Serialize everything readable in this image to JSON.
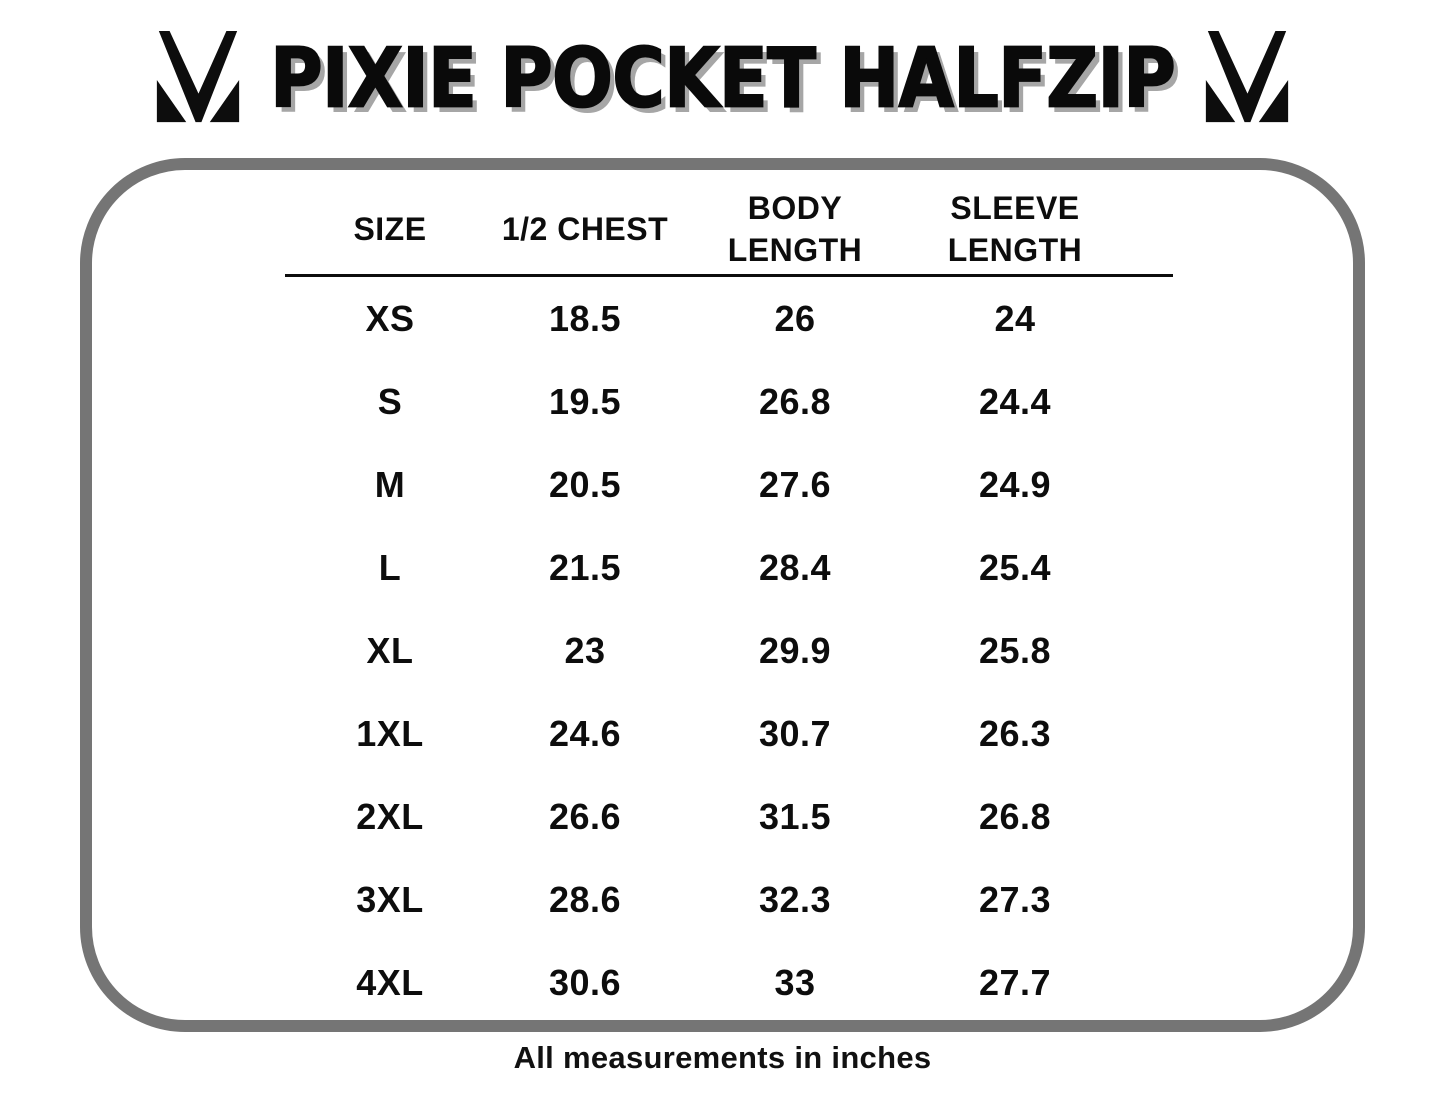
{
  "header": {
    "title": "PIXIE POCKET HALFZIP",
    "logo_left_icon": "mv-monogram-icon",
    "logo_right_icon": "mv-monogram-icon"
  },
  "table": {
    "columns": [
      "SIZE",
      "1/2 CHEST",
      "BODY LENGTH",
      "SLEEVE LENGTH"
    ],
    "rows": [
      [
        "XS",
        "18.5",
        "26",
        "24"
      ],
      [
        "S",
        "19.5",
        "26.8",
        "24.4"
      ],
      [
        "M",
        "20.5",
        "27.6",
        "24.9"
      ],
      [
        "L",
        "21.5",
        "28.4",
        "25.4"
      ],
      [
        "XL",
        "23",
        "29.9",
        "25.8"
      ],
      [
        "1XL",
        "24.6",
        "30.7",
        "26.3"
      ],
      [
        "2XL",
        "26.6",
        "31.5",
        "26.8"
      ],
      [
        "3XL",
        "28.6",
        "32.3",
        "27.3"
      ],
      [
        "4XL",
        "30.6",
        "33",
        "27.7"
      ]
    ]
  },
  "footer": {
    "note": "All measurements in inches"
  },
  "colors": {
    "frame_border": "#757575",
    "text": "#0d0d0d",
    "title_shadow": "#a6a6a6"
  },
  "chart_data": {
    "type": "table",
    "title": "PIXIE POCKET HALFZIP",
    "columns": [
      "SIZE",
      "1/2 CHEST",
      "BODY LENGTH",
      "SLEEVE LENGTH"
    ],
    "rows": [
      [
        "XS",
        18.5,
        26,
        24
      ],
      [
        "S",
        19.5,
        26.8,
        24.4
      ],
      [
        "M",
        20.5,
        27.6,
        24.9
      ],
      [
        "L",
        21.5,
        28.4,
        25.4
      ],
      [
        "XL",
        23,
        29.9,
        25.8
      ],
      [
        "1XL",
        24.6,
        30.7,
        26.3
      ],
      [
        "2XL",
        26.6,
        31.5,
        26.8
      ],
      [
        "3XL",
        28.6,
        32.3,
        27.3
      ],
      [
        "4XL",
        30.6,
        33,
        27.7
      ]
    ],
    "units": "inches",
    "footnote": "All measurements in inches"
  }
}
